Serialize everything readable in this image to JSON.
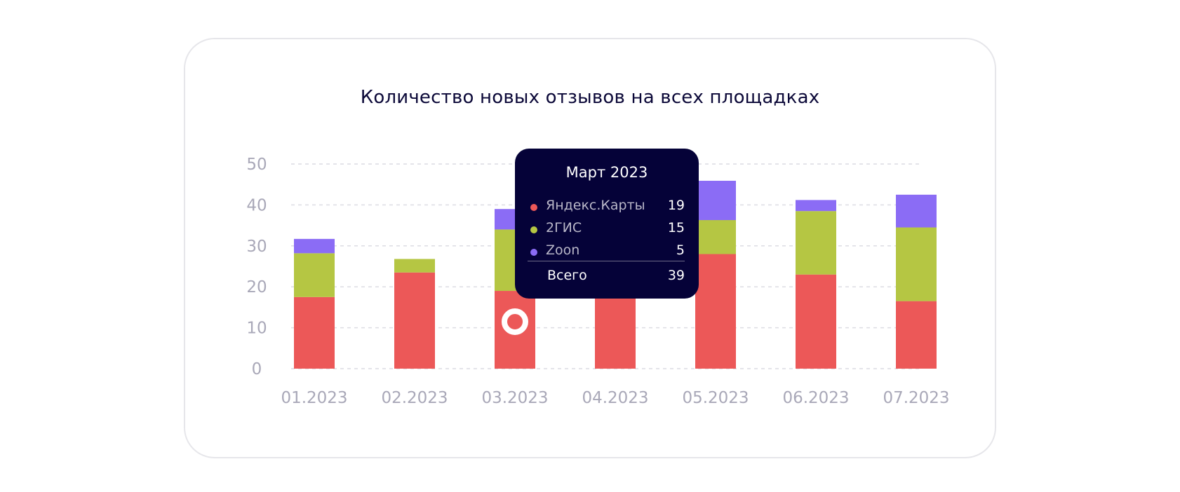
{
  "chart_data": {
    "type": "bar",
    "stacked": true,
    "title": "Количество новых отзывов на всех площадках",
    "categories": [
      "01.2023",
      "02.2023",
      "03.2023",
      "04.2023",
      "05.2023",
      "06.2023",
      "07.2023"
    ],
    "series": [
      {
        "name": "Яндекс.Карты",
        "color": "#ec5858",
        "values": [
          17.5,
          23.5,
          19,
          19,
          28,
          23,
          16.5
        ]
      },
      {
        "name": "2ГИС",
        "color": "#b5c643",
        "values": [
          10.7,
          3.3,
          15,
          0,
          8.3,
          15.5,
          18
        ]
      },
      {
        "name": "Zoon",
        "color": "#8b6cf5",
        "values": [
          3.5,
          0,
          5,
          0,
          9.6,
          2.7,
          8
        ]
      }
    ],
    "yticks": [
      0,
      10,
      20,
      30,
      40,
      50
    ],
    "ylim": [
      0,
      50
    ],
    "grid": true,
    "xlabel": "",
    "ylabel": ""
  },
  "tooltip": {
    "title": "Март 2023",
    "rows": [
      {
        "name": "Яндекс.Карты",
        "value": "19",
        "color": "#ec5858"
      },
      {
        "name": "2ГИС",
        "value": "15",
        "color": "#b5c643"
      },
      {
        "name": "Zoon",
        "value": "5",
        "color": "#8b6cf5"
      }
    ],
    "total_label": "Всего",
    "total_value": "39"
  },
  "colors": {
    "axis_text": "#a9a8b8",
    "grid": "#dcdce3",
    "title": "#0b0838",
    "tooltip_bg": "#050238"
  }
}
